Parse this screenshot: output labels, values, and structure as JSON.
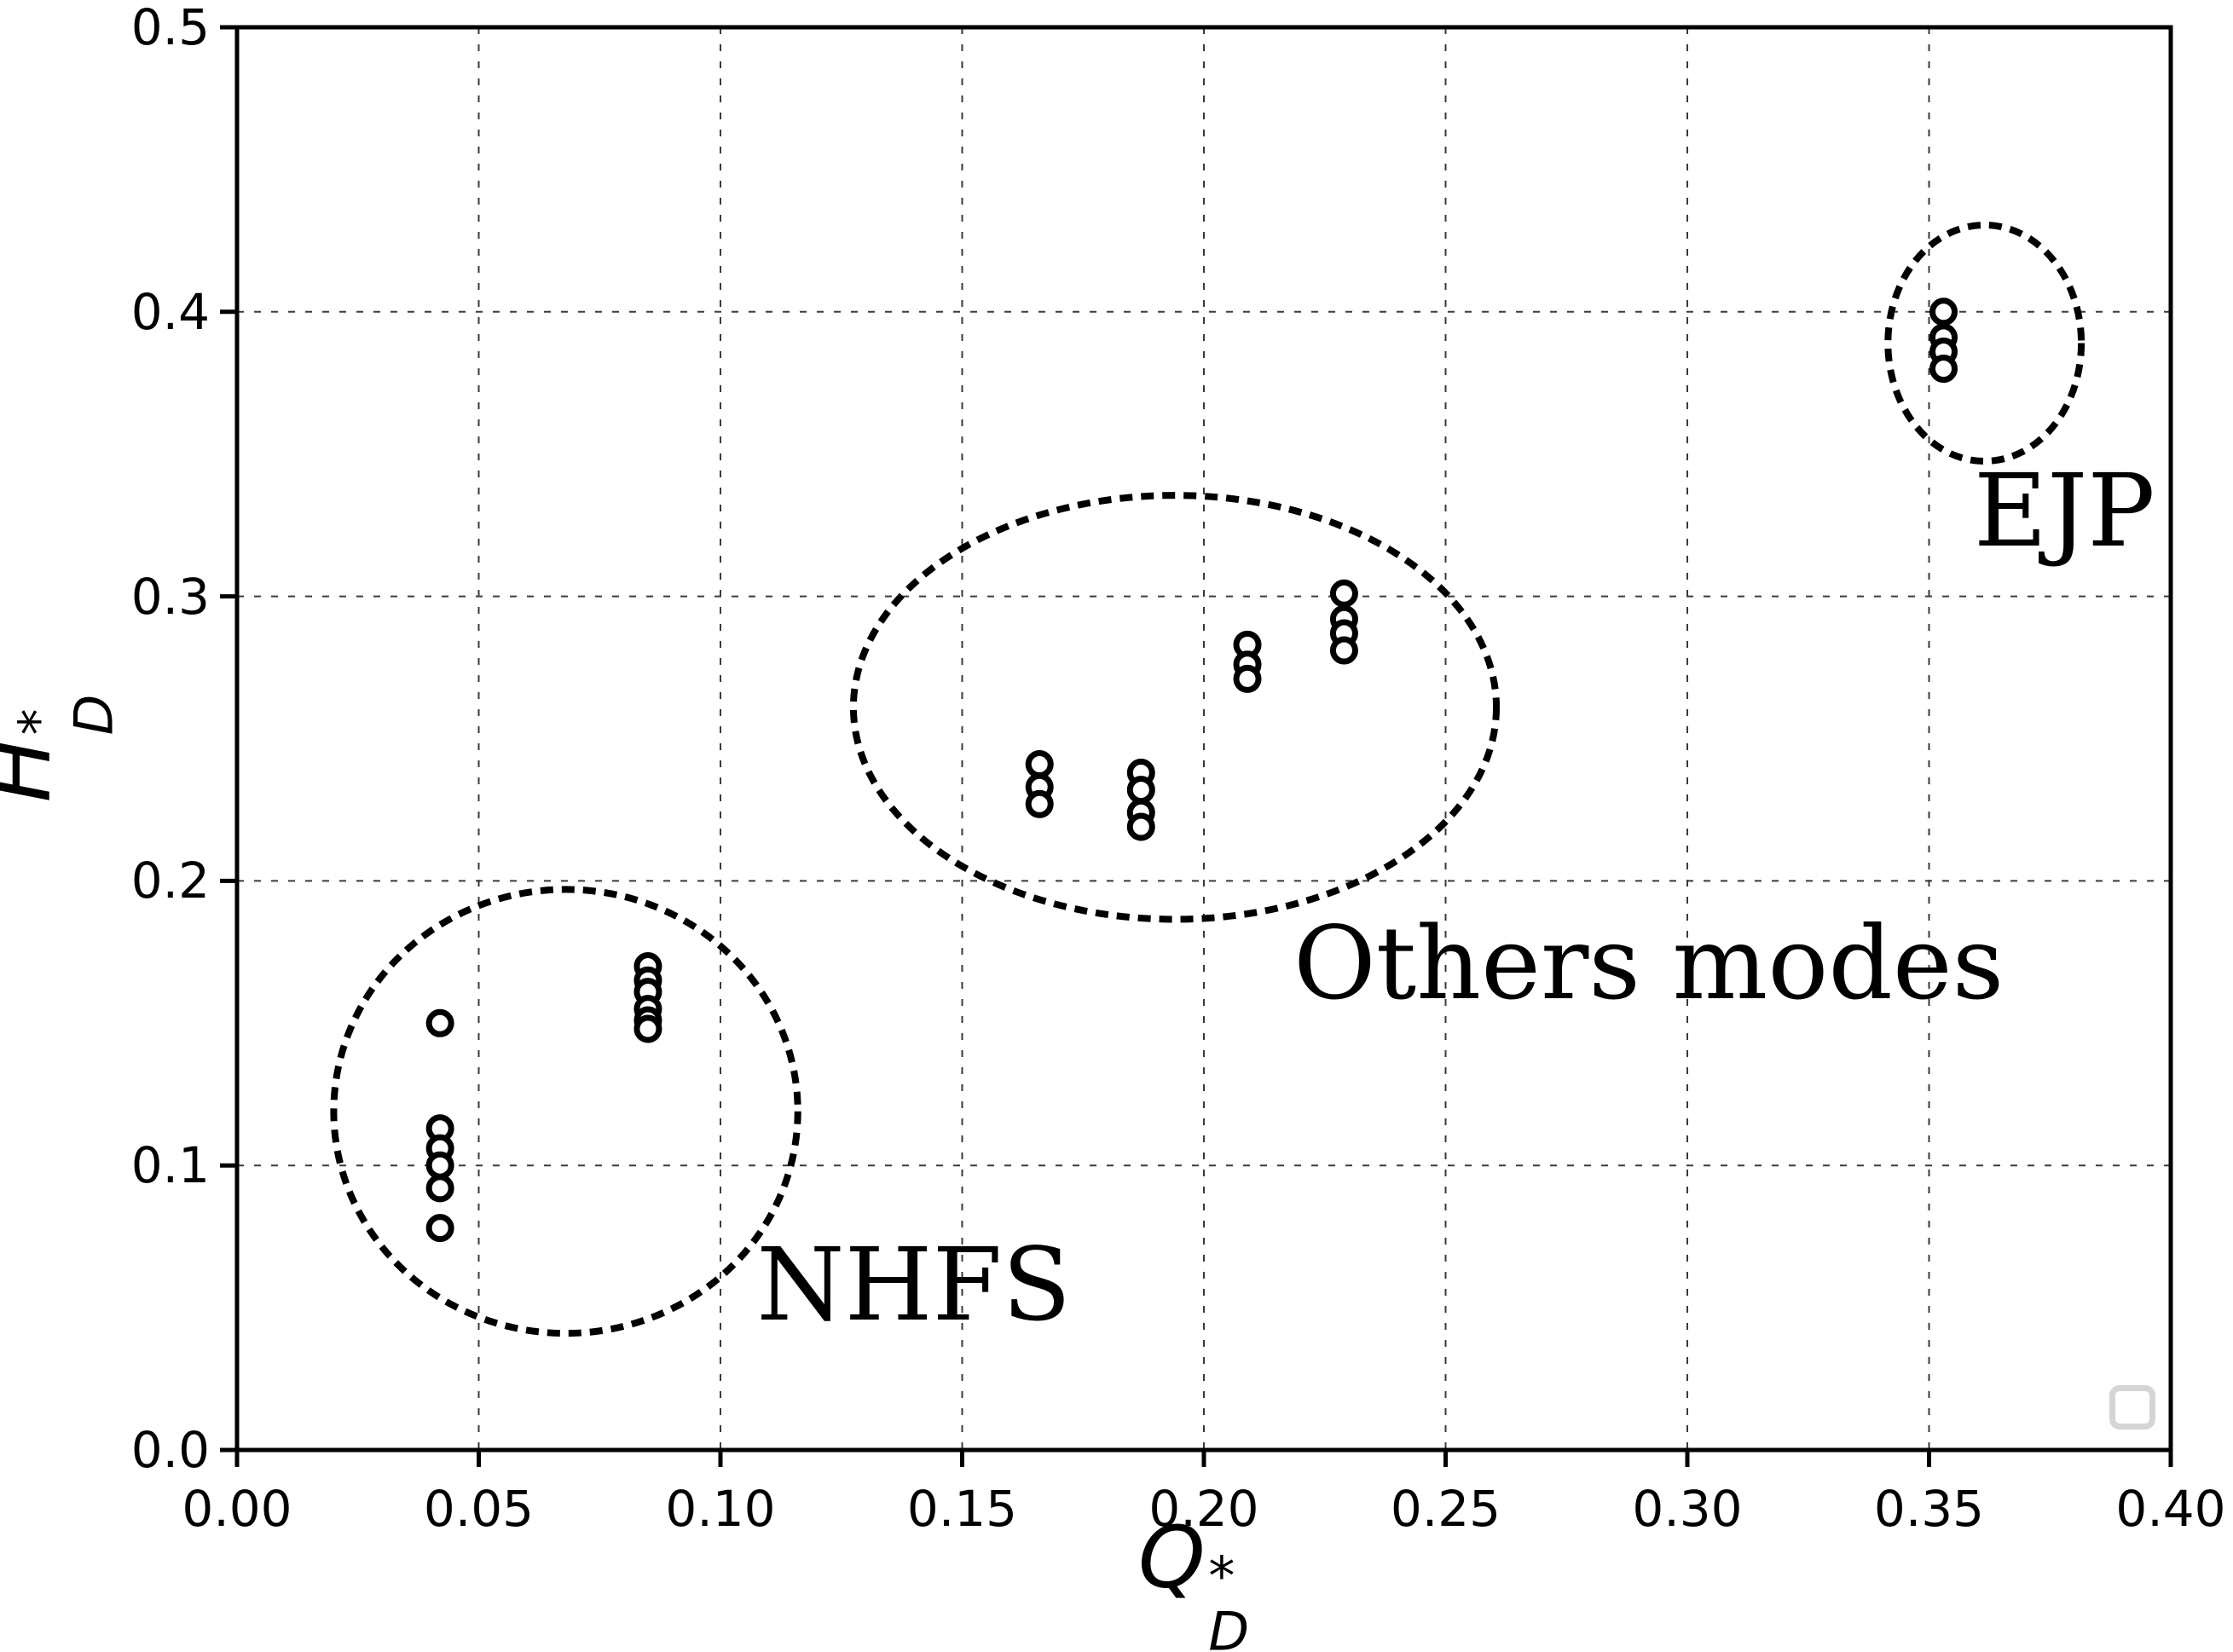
{
  "figure": {
    "background": "#ffffff",
    "line_color": "#000000",
    "grid_color": "#3a3a3a",
    "legend_placeholder_color": "#d5d5d5"
  },
  "chart_data": {
    "type": "scatter",
    "title": "",
    "xlabel": "Q_D^*",
    "ylabel": "H_D^*",
    "xlabel_parts": {
      "var": "Q",
      "sup": "*",
      "sub": "D"
    },
    "ylabel_parts": {
      "var": "H",
      "sup": "*",
      "sub": "D"
    },
    "xlim": [
      0.0,
      0.4
    ],
    "ylim": [
      0.0,
      0.5
    ],
    "x_tick_values": [
      0.0,
      0.05,
      0.1,
      0.15,
      0.2,
      0.25,
      0.3,
      0.35,
      0.4
    ],
    "x_tick_labels": [
      "0.00",
      "0.05",
      "0.10",
      "0.15",
      "0.20",
      "0.25",
      "0.30",
      "0.35",
      "0.40"
    ],
    "y_tick_values": [
      0.0,
      0.1,
      0.2,
      0.3,
      0.4,
      0.5
    ],
    "y_tick_labels": [
      "0.0",
      "0.1",
      "0.2",
      "0.3",
      "0.4",
      "0.5"
    ],
    "grid": true,
    "legend_position": "lower right (empty placeholder)",
    "marker": "open-circle",
    "series": [
      {
        "name": "NHFS",
        "points": [
          [
            0.042,
            0.15
          ],
          [
            0.042,
            0.113
          ],
          [
            0.042,
            0.106
          ],
          [
            0.042,
            0.1
          ],
          [
            0.042,
            0.092
          ],
          [
            0.042,
            0.078
          ],
          [
            0.085,
            0.17
          ],
          [
            0.085,
            0.165
          ],
          [
            0.085,
            0.161
          ],
          [
            0.085,
            0.155
          ],
          [
            0.085,
            0.151
          ],
          [
            0.085,
            0.148
          ]
        ]
      },
      {
        "name": "Others modes",
        "points": [
          [
            0.166,
            0.241
          ],
          [
            0.166,
            0.233
          ],
          [
            0.166,
            0.227
          ],
          [
            0.187,
            0.238
          ],
          [
            0.187,
            0.232
          ],
          [
            0.187,
            0.224
          ],
          [
            0.187,
            0.219
          ],
          [
            0.209,
            0.283
          ],
          [
            0.209,
            0.276
          ],
          [
            0.209,
            0.271
          ],
          [
            0.229,
            0.301
          ],
          [
            0.229,
            0.292
          ],
          [
            0.229,
            0.287
          ],
          [
            0.229,
            0.281
          ]
        ]
      },
      {
        "name": "EJP",
        "points": [
          [
            0.353,
            0.4
          ],
          [
            0.353,
            0.391
          ],
          [
            0.353,
            0.386
          ],
          [
            0.353,
            0.38
          ]
        ]
      }
    ],
    "ellipses": [
      {
        "label": "NHFS",
        "cx": 0.068,
        "cy": 0.119,
        "rx": 0.048,
        "ry": 0.078
      },
      {
        "label": "Others modes",
        "cx": 0.194,
        "cy": 0.261,
        "rx": 0.0665,
        "ry": 0.0745
      },
      {
        "label": "EJP",
        "cx": 0.3615,
        "cy": 0.389,
        "rx": 0.02,
        "ry": 0.0415
      }
    ],
    "annotations": [
      {
        "text": "NHFS",
        "x": 0.14,
        "y": 0.058
      },
      {
        "text": "Others modes",
        "x": 0.292,
        "y": 0.171
      },
      {
        "text": "EJP",
        "x": 0.378,
        "y": 0.33
      }
    ],
    "legend_placeholder": {
      "x": 0.392,
      "y": 0.015
    }
  }
}
